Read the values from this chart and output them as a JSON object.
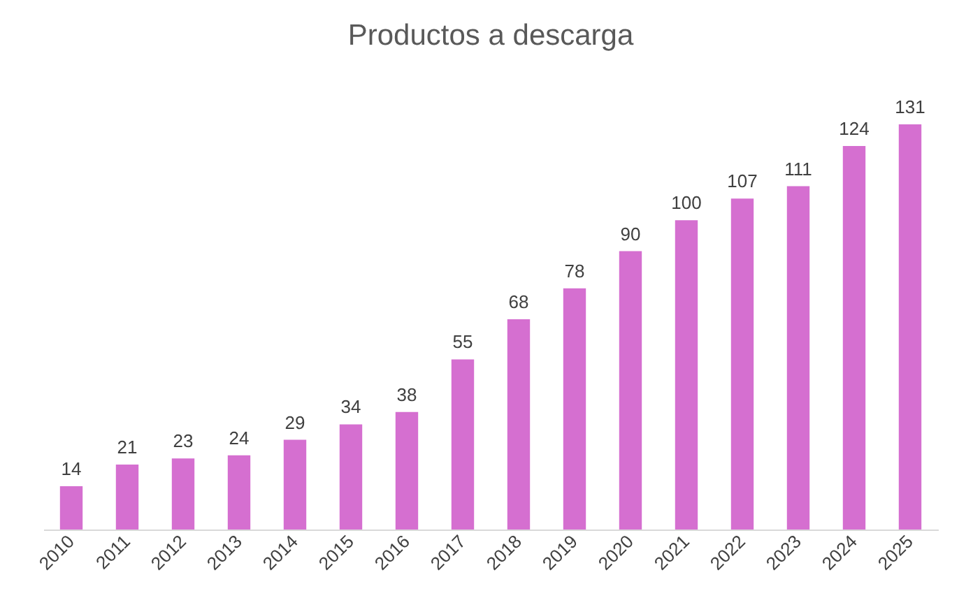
{
  "chart_data": {
    "type": "bar",
    "title": "Productos a descarga",
    "categories": [
      "2010",
      "2011",
      "2012",
      "2013",
      "2014",
      "2015",
      "2016",
      "2017",
      "2018",
      "2019",
      "2020",
      "2021",
      "2022",
      "2023",
      "2024",
      "2025"
    ],
    "values": [
      14,
      21,
      23,
      24,
      29,
      34,
      38,
      55,
      68,
      78,
      90,
      100,
      107,
      111,
      124,
      131
    ],
    "color": "#d56fd0",
    "data_labels": true,
    "grid": false
  }
}
